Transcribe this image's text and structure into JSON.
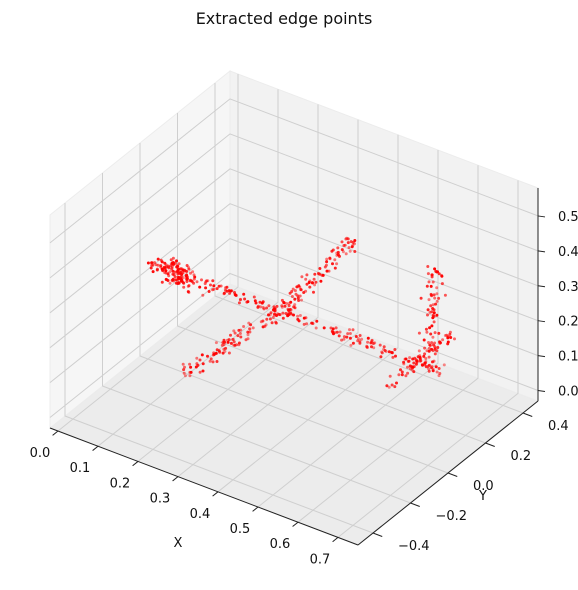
{
  "chart_data": {
    "type": "scatter",
    "title": "Extracted edge points",
    "xlabel": "X",
    "ylabel": "Y",
    "zlabel": "",
    "xlim": [
      -0.02,
      0.75
    ],
    "ylim": [
      -0.48,
      0.48
    ],
    "zlim": [
      -0.03,
      0.58
    ],
    "xticks": [
      "0.0",
      "0.1",
      "0.2",
      "0.3",
      "0.4",
      "0.5",
      "0.6",
      "0.7"
    ],
    "yticks": [
      "−0.4",
      "−0.2",
      "0.0",
      "0.2",
      "0.4"
    ],
    "zticks": [
      "0.0",
      "0.1",
      "0.2",
      "0.3",
      "0.4",
      "0.5"
    ],
    "grid": true,
    "color": "#ff0000",
    "segments": [
      {
        "name": "fuselage",
        "from": [
          0.02,
          0.0,
          0.25
        ],
        "to": [
          0.74,
          0.0,
          0.25
        ],
        "count": 190,
        "spread": 0.02
      },
      {
        "name": "wing-left",
        "from": [
          0.34,
          0.0,
          0.26
        ],
        "to": [
          0.3,
          -0.45,
          0.25
        ],
        "count": 95,
        "spread": 0.02
      },
      {
        "name": "wing-right",
        "from": [
          0.34,
          0.0,
          0.26
        ],
        "to": [
          0.3,
          0.45,
          0.25
        ],
        "count": 95,
        "spread": 0.02
      },
      {
        "name": "tail-fin",
        "from": [
          0.7,
          0.0,
          0.27
        ],
        "to": [
          0.72,
          0.0,
          0.55
        ],
        "count": 70,
        "spread": 0.02
      },
      {
        "name": "stabilizer-left",
        "from": [
          0.68,
          0.0,
          0.27
        ],
        "to": [
          0.68,
          -0.17,
          0.26
        ],
        "count": 30,
        "spread": 0.015
      },
      {
        "name": "stabilizer-right",
        "from": [
          0.68,
          0.0,
          0.27
        ],
        "to": [
          0.68,
          0.17,
          0.26
        ],
        "count": 30,
        "spread": 0.015
      },
      {
        "name": "nose-cluster",
        "from": [
          0.05,
          0.0,
          0.25
        ],
        "to": [
          0.09,
          0.0,
          0.24
        ],
        "count": 110,
        "spread": 0.04
      }
    ]
  }
}
